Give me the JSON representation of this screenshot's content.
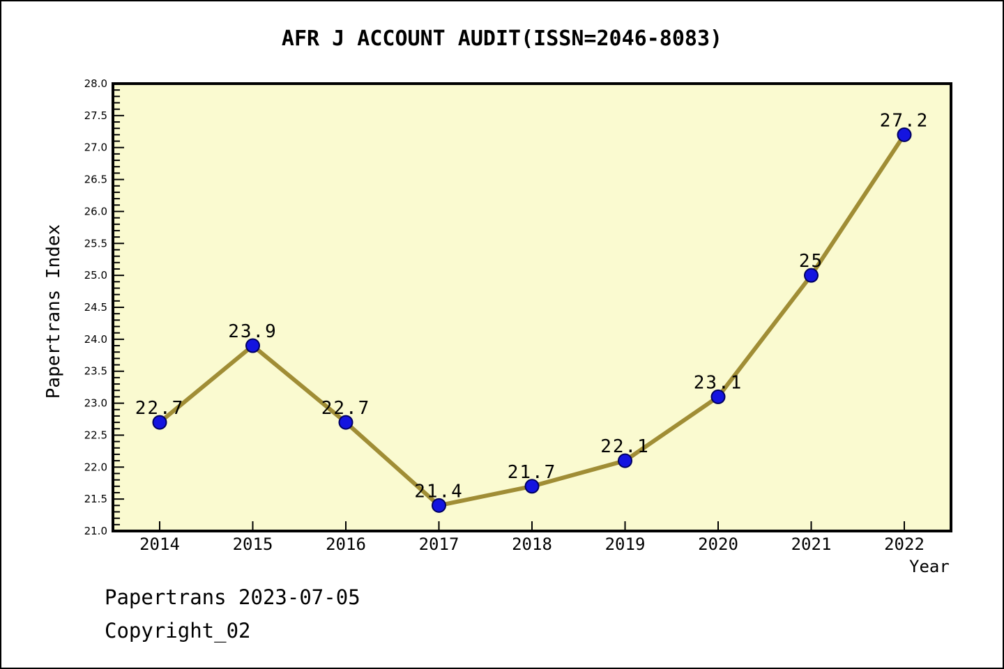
{
  "chart_data": {
    "type": "line",
    "title": "AFR J ACCOUNT AUDIT(ISSN=2046-8083)",
    "xlabel": "Year",
    "ylabel": "Papertrans Index",
    "x": [
      2014,
      2015,
      2016,
      2017,
      2018,
      2019,
      2020,
      2021,
      2022
    ],
    "series": [
      {
        "name": "Papertrans Index",
        "values": [
          22.7,
          23.9,
          22.7,
          21.4,
          21.7,
          22.1,
          23.1,
          25,
          27.2
        ],
        "point_labels": [
          "22.7",
          "23.9",
          "22.7",
          "21.4",
          "21.7",
          "22.1",
          "23.1",
          "25",
          "27.2"
        ]
      }
    ],
    "ylim": [
      21.0,
      28.0
    ],
    "y_major_step": 0.5,
    "y_minor_step": 0.1,
    "grid": false,
    "legend_position": "none",
    "colors": {
      "plot_bg": "#fafad0",
      "line": "#a08d35",
      "point_fill": "#1414e0",
      "point_edge": "#000060",
      "axis": "#000000",
      "text": "#000000"
    }
  },
  "footer": {
    "line1": "Papertrans 2023-07-05",
    "line2": "Copyright_02"
  }
}
